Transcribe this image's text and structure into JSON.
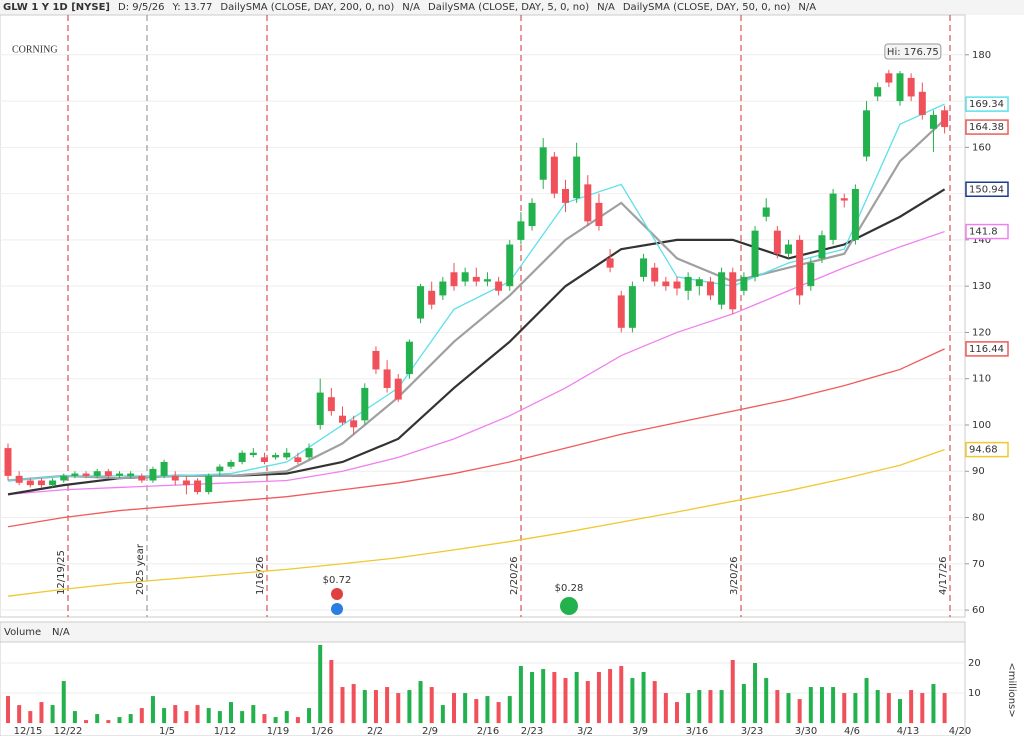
{
  "chart_data": {
    "type": "candlestick",
    "header": [
      {
        "text": "GLW 1 Y 1D [NYSE]",
        "color": "#222"
      },
      {
        "text": "D: 9/5/26",
        "color": "#888"
      },
      {
        "text": "Y: 13.77",
        "color": "#888"
      },
      {
        "text": "DailySMA (CLOSE, DAY, 200, 0, no)",
        "color": "#d4a017"
      },
      {
        "text": "N/A",
        "color": "#d4a017"
      },
      {
        "text": "DailySMA (CLOSE, DAY, 5, 0, no)",
        "color": "#1cc6d6"
      },
      {
        "text": "N/A",
        "color": "#1cc6d6"
      },
      {
        "text": "DailySMA (CLOSE, DAY, 50, 0, no)",
        "color": "#d63cd6"
      },
      {
        "text": "N/A",
        "color": "#d63cd6"
      }
    ],
    "watermark": "CORNING",
    "ylim": [
      58.5,
      188.6
    ],
    "yticks": [
      60,
      70,
      80,
      90,
      100,
      110,
      120,
      130,
      140,
      150,
      160,
      170,
      180
    ],
    "up_color": "#22b14c",
    "down_color": "#f0505a",
    "ohlc": [
      [
        95,
        96,
        88,
        89
      ],
      [
        89,
        90,
        87,
        87.5
      ],
      [
        88,
        88.5,
        86.5,
        87
      ],
      [
        88,
        88.5,
        86.5,
        87
      ],
      [
        87,
        88.5,
        86.5,
        88
      ],
      [
        88,
        89.5,
        87.5,
        89
      ],
      [
        89,
        90,
        88.5,
        89.5
      ],
      [
        89.5,
        90,
        88.5,
        89
      ],
      [
        89,
        90.5,
        88.5,
        90
      ],
      [
        90,
        90.5,
        88.5,
        89
      ],
      [
        89,
        90,
        88.5,
        89.5
      ],
      [
        89,
        90,
        88.5,
        89.5
      ],
      [
        89,
        89.5,
        87.5,
        88
      ],
      [
        88,
        91,
        87.5,
        90.5
      ],
      [
        89,
        92.5,
        88.5,
        92
      ],
      [
        89,
        90,
        87,
        88
      ],
      [
        88,
        89,
        85,
        87
      ],
      [
        88,
        88.5,
        85,
        85.5
      ],
      [
        85.5,
        89.5,
        85,
        89
      ],
      [
        90,
        91.5,
        89,
        91
      ],
      [
        91,
        92.5,
        90.5,
        92
      ],
      [
        92,
        94.5,
        91.5,
        94
      ],
      [
        93.5,
        95,
        93,
        94
      ],
      [
        93,
        94,
        91.5,
        92
      ],
      [
        93,
        94,
        92.5,
        93.5
      ],
      [
        93,
        95,
        92.5,
        94
      ],
      [
        93,
        94,
        91.5,
        92
      ],
      [
        93,
        96,
        92.5,
        95
      ],
      [
        100,
        110,
        99,
        107
      ],
      [
        106,
        108,
        102,
        103
      ],
      [
        102,
        104,
        100,
        100.5
      ],
      [
        101,
        102,
        98,
        99.5
      ],
      [
        101,
        109,
        100,
        108
      ],
      [
        116,
        117,
        111,
        112
      ],
      [
        112,
        114,
        107,
        108
      ],
      [
        110,
        111,
        105,
        105.5
      ],
      [
        111,
        118.5,
        110,
        118
      ],
      [
        123,
        130.5,
        122,
        130
      ],
      [
        129,
        131,
        125,
        126
      ],
      [
        128,
        132,
        127,
        131
      ],
      [
        133,
        135,
        129,
        130
      ],
      [
        131,
        134,
        130,
        133
      ],
      [
        132,
        134,
        130,
        131
      ],
      [
        131,
        133,
        130,
        131.5
      ],
      [
        131,
        132,
        128,
        129
      ],
      [
        130,
        140,
        129,
        139
      ],
      [
        140,
        146,
        139,
        144
      ],
      [
        143,
        149,
        142,
        148
      ],
      [
        153,
        162,
        151,
        160
      ],
      [
        158,
        159,
        149,
        150
      ],
      [
        151,
        153,
        146,
        148
      ],
      [
        149,
        161,
        148,
        158
      ],
      [
        152,
        154,
        143,
        144
      ],
      [
        148,
        150,
        142,
        143
      ],
      [
        136,
        138,
        133,
        134
      ],
      [
        128,
        129,
        120,
        121
      ],
      [
        121,
        131,
        120,
        130
      ],
      [
        132,
        137,
        131,
        136
      ],
      [
        134,
        135,
        130,
        131
      ],
      [
        131,
        132,
        129,
        130
      ],
      [
        131,
        132,
        128,
        129.5
      ],
      [
        129,
        133,
        127,
        132
      ],
      [
        130,
        132,
        128,
        131.5
      ],
      [
        131,
        132,
        127,
        128
      ],
      [
        126,
        134,
        125,
        133
      ],
      [
        133,
        134,
        124,
        125
      ],
      [
        129,
        133,
        128,
        132
      ],
      [
        132,
        143,
        131,
        142
      ],
      [
        145,
        149,
        144,
        147
      ],
      [
        142,
        143,
        136,
        137
      ],
      [
        137,
        140,
        136,
        139
      ],
      [
        140,
        141,
        126,
        128
      ],
      [
        130,
        136,
        129,
        135
      ],
      [
        136,
        142,
        135,
        141
      ],
      [
        140,
        151,
        139,
        150
      ],
      [
        149,
        150,
        147,
        148.5
      ],
      [
        140,
        152,
        139,
        151
      ],
      [
        158,
        170,
        157,
        168
      ],
      [
        171,
        174,
        170,
        173
      ],
      [
        176,
        176.75,
        173,
        174
      ],
      [
        170,
        176.5,
        169,
        176
      ],
      [
        175,
        176,
        170,
        171
      ],
      [
        172,
        174,
        166,
        167
      ],
      [
        164,
        168,
        159,
        167
      ],
      [
        168,
        169,
        163,
        164.38
      ]
    ],
    "high_label": "Hi: 176.75",
    "lines_x": [
      0,
      5,
      10,
      15,
      20,
      25,
      30,
      35,
      40,
      45,
      50,
      55,
      60,
      65,
      70,
      75,
      80,
      84
    ],
    "lines": [
      {
        "color": "#f0c830",
        "values": [
          63,
          64.5,
          65.8,
          66.8,
          67.8,
          68.8,
          70,
          71.3,
          73,
          74.8,
          76.8,
          79,
          81.2,
          83.5,
          85.8,
          88.4,
          91.3,
          94.68
        ]
      },
      {
        "color": "#f080f0",
        "values": [
          85,
          86,
          86.5,
          87,
          87.5,
          88,
          90,
          93,
          97,
          102,
          108,
          115,
          120,
          124,
          129,
          134,
          138.5,
          141.8
        ]
      },
      {
        "color": "#f05a5a",
        "values": [
          78,
          80,
          81.5,
          82.5,
          83.5,
          84.5,
          86,
          87.5,
          89.5,
          92,
          95,
          98,
          100.5,
          103,
          105.5,
          108.5,
          112,
          116.44
        ]
      },
      {
        "color": "#333333",
        "values": [
          85,
          87,
          88.5,
          89,
          89,
          89.5,
          92,
          97,
          108,
          118,
          130,
          138,
          140,
          140,
          136,
          139,
          145,
          150.94
        ]
      },
      {
        "color": "#a0a0a0",
        "values": [
          88,
          89,
          88.5,
          89,
          89,
          90,
          96,
          106,
          118,
          128,
          140,
          148,
          136,
          131,
          134,
          137,
          157,
          166
        ]
      },
      {
        "color": "#5de0ea",
        "values": [
          88,
          89,
          89,
          89,
          89.5,
          92,
          100,
          108,
          125,
          131,
          148,
          152,
          132,
          130,
          135,
          138,
          165,
          169.34
        ]
      }
    ],
    "price_labels": [
      {
        "value": 169.34,
        "color": "#5de0ea"
      },
      {
        "value": 164.38,
        "color": "#f05a5a"
      },
      {
        "value": 150.94,
        "color": "#1a3d8f"
      },
      {
        "value": 141.8,
        "color": "#f080f0"
      },
      {
        "value": 116.44,
        "color": "#f05a5a"
      },
      {
        "value": 94.68,
        "color": "#f0c830"
      }
    ],
    "markers": [
      "12/19/25",
      "2025 year",
      "1/16/26",
      "2/20/26",
      "3/20/26",
      "4/17/26"
    ],
    "dividends": [
      "$0.72",
      "$0.28"
    ],
    "weeks": [
      "12/15",
      "12/22",
      "1/5",
      "1/12",
      "1/19",
      "1/26",
      "2/2",
      "2/9",
      "2/16",
      "2/23",
      "3/2",
      "3/9",
      "3/16",
      "3/23",
      "3/30",
      "4/6",
      "4/13",
      "4/20"
    ],
    "volume": {
      "title": "Volume",
      "status": "N/A",
      "unit": "<millions>",
      "ylim": [
        -2.3,
        27
      ],
      "yticks": [
        10,
        20
      ],
      "values": [
        9,
        6,
        4,
        7,
        6,
        14,
        4,
        1,
        3,
        1,
        2,
        3,
        5,
        9,
        5,
        6,
        4,
        6,
        5,
        4,
        7,
        4,
        6,
        3,
        2,
        4,
        2,
        5,
        26,
        21,
        12,
        13,
        11,
        11,
        12,
        10,
        11,
        14,
        12,
        6,
        10,
        10,
        8,
        9,
        7,
        9,
        19,
        17,
        18,
        17,
        15,
        17,
        14,
        17,
        18,
        19,
        15,
        17,
        14,
        10,
        7,
        10,
        11,
        11,
        11,
        21,
        13,
        20,
        15,
        11,
        10,
        8,
        12,
        12,
        12,
        10,
        10,
        15,
        11,
        10,
        8,
        11,
        10,
        13,
        10
      ]
    }
  }
}
